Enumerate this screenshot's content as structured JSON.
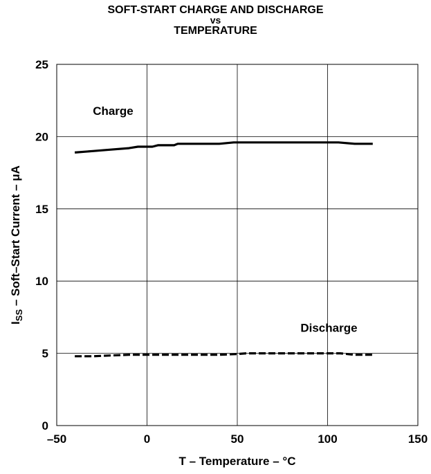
{
  "chart_data": {
    "type": "line",
    "title": [
      "SOFT-START CHARGE AND DISCHARGE",
      "vs",
      "TEMPERATURE"
    ],
    "xlabel": "T – Temperature – °C",
    "ylabel": {
      "prefix": "I",
      "subscript": "SS",
      "rest": " – Soft–Start Current  – μA"
    },
    "xlim": [
      -50,
      150
    ],
    "ylim": [
      0,
      25
    ],
    "x_ticks": [
      "–50",
      "0",
      "50",
      "100",
      "150"
    ],
    "x_tick_values": [
      -50,
      0,
      50,
      100,
      150
    ],
    "y_ticks": [
      "0",
      "5",
      "10",
      "15",
      "20",
      "25"
    ],
    "y_tick_values": [
      0,
      5,
      10,
      15,
      20,
      25
    ],
    "grid": true,
    "series": [
      {
        "name": "Charge",
        "style": "solid",
        "color": "#000000",
        "x": [
          -40,
          -30,
          -20,
          -10,
          -5,
          0,
          3,
          6,
          10,
          15,
          17,
          25,
          35,
          40,
          48,
          60,
          70,
          80,
          90,
          100,
          106,
          115,
          125
        ],
        "y": [
          18.9,
          19.0,
          19.1,
          19.2,
          19.3,
          19.3,
          19.3,
          19.4,
          19.4,
          19.4,
          19.5,
          19.5,
          19.5,
          19.5,
          19.6,
          19.6,
          19.6,
          19.6,
          19.6,
          19.6,
          19.6,
          19.5,
          19.5
        ]
      },
      {
        "name": "Discharge",
        "style": "dashed",
        "color": "#000000",
        "x": [
          -40,
          -30,
          -20,
          -10,
          0,
          10,
          20,
          30,
          40,
          50,
          55,
          60,
          70,
          80,
          90,
          100,
          107,
          115,
          125
        ],
        "y": [
          4.8,
          4.8,
          4.85,
          4.9,
          4.9,
          4.9,
          4.9,
          4.9,
          4.9,
          4.95,
          5.0,
          5.0,
          5.0,
          5.0,
          5.0,
          5.0,
          5.0,
          4.9,
          4.9
        ]
      }
    ],
    "annotations": [
      {
        "text": "Charge",
        "x": -30,
        "y": 21.5
      },
      {
        "text": "Discharge",
        "x": 85,
        "y": 6.5
      }
    ]
  }
}
